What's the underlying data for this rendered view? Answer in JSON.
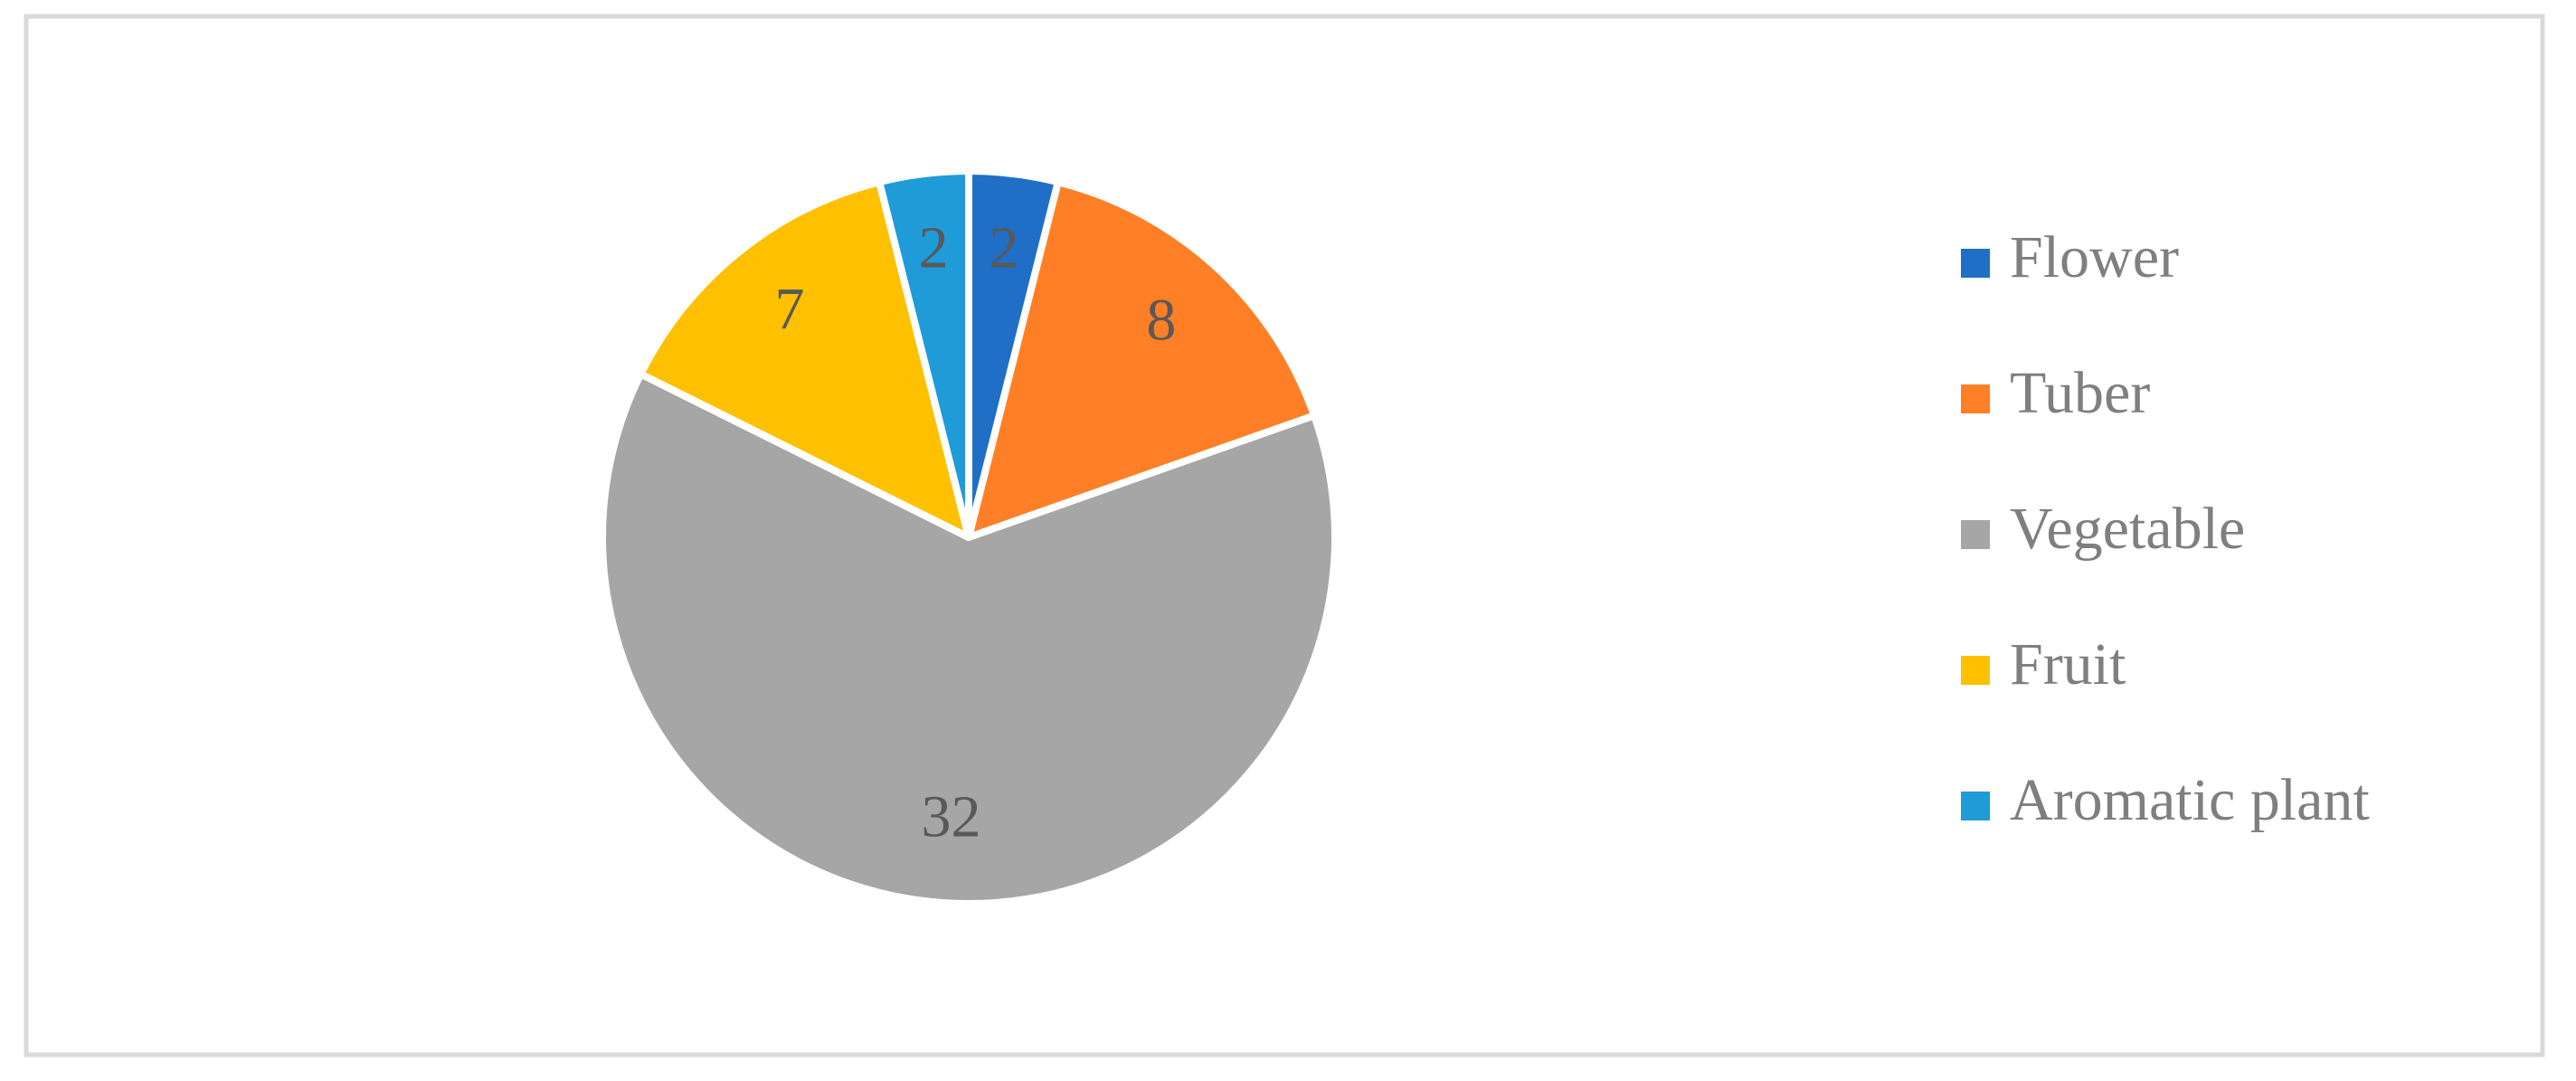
{
  "chart_data": {
    "type": "pie",
    "categories": [
      "Flower",
      "Tuber",
      "Vegetable",
      "Fruit",
      "Aromatic plant"
    ],
    "values": [
      2,
      8,
      32,
      7,
      2
    ],
    "colors": [
      "#1f6fc6",
      "#ff7f27",
      "#a6a6a6",
      "#ffc000",
      "#1f9bd8"
    ],
    "legend": "right"
  }
}
